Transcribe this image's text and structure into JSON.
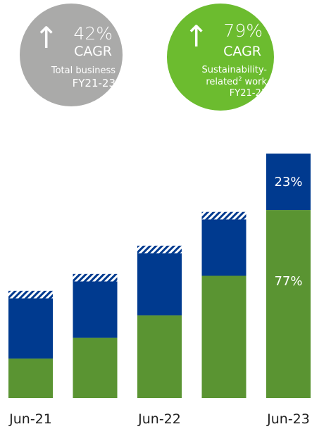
{
  "badges": {
    "total": {
      "arrow_icon": "arrow-up-icon",
      "percent": "42%",
      "label": "CAGR",
      "desc_line1": "Total business",
      "desc_line2": "FY21-23",
      "color": "#aaaaa9"
    },
    "sustainability": {
      "arrow_icon": "arrow-up-icon",
      "percent": "79%",
      "label": "CAGR",
      "desc_line1": "Sustainability-",
      "desc_line2_pre": "related",
      "desc_line2_sup": "2",
      "desc_line2_post": " work",
      "desc_line3": "FY21-23",
      "color": "#6cbc2f"
    }
  },
  "chart_data": {
    "type": "bar",
    "stacked": true,
    "categories": [
      "Jun-21",
      "",
      "Jun-22",
      "",
      "Jun-23"
    ],
    "series": [
      {
        "values": [
          21,
          32,
          44,
          65,
          100
        ],
        "color": "#5a9432"
      },
      {
        "values": [
          32,
          30,
          33,
          30,
          30
        ],
        "color": "#003a8f"
      },
      {
        "values": [
          4,
          4,
          4,
          4,
          0
        ],
        "pattern": "hatched"
      }
    ],
    "data_labels": {
      "Jun-23": [
        "77%",
        "23%"
      ]
    },
    "title": "",
    "xlabel": "",
    "ylabel": "",
    "ylim": [
      0,
      130
    ],
    "grid": false,
    "legend": "none"
  }
}
